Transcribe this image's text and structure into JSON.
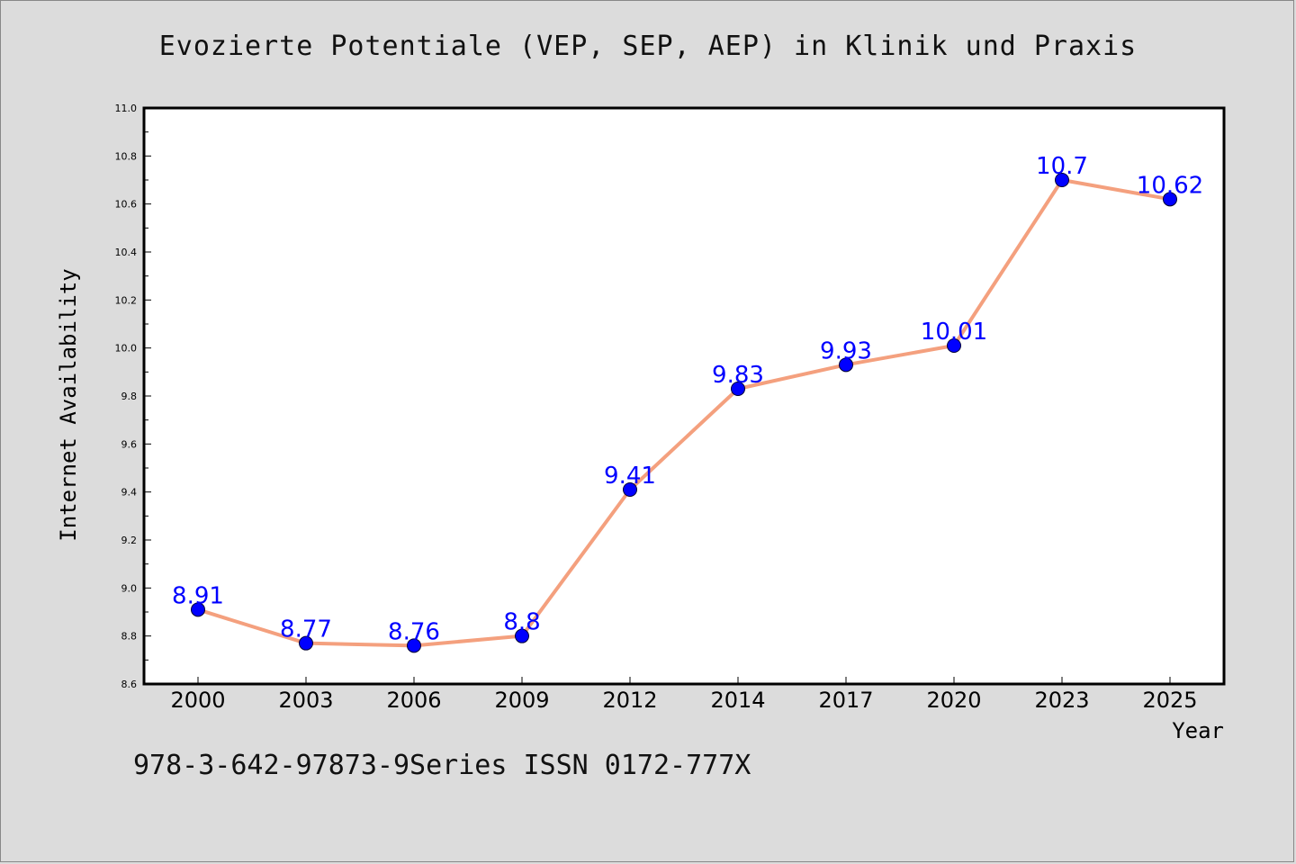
{
  "title": "Evozierte Potentiale (VEP, SEP, AEP) in Klinik und Praxis",
  "footer": "978-3-642-97873-9Series ISSN 0172-777X",
  "colors": {
    "background": "#dcdcdc",
    "plot_background": "#ffffff",
    "line": "#f4a07e",
    "marker": "#0000ff",
    "data_label": "#0000ff"
  },
  "chart_data": {
    "type": "line",
    "title": "Evozierte Potentiale (VEP, SEP, AEP) in Klinik und Praxis",
    "xlabel": "Year",
    "ylabel": "Internet Availability",
    "categories": [
      "2000",
      "2003",
      "2006",
      "2009",
      "2012",
      "2014",
      "2017",
      "2020",
      "2023",
      "2025"
    ],
    "series": [
      {
        "values": [
          8.91,
          8.77,
          8.76,
          8.8,
          9.41,
          9.83,
          9.93,
          10.01,
          10.7,
          10.62
        ],
        "labels": [
          "8.91",
          "8.77",
          "8.76",
          "8.8",
          "9.41",
          "9.83",
          "9.93",
          "10.01",
          "10.7",
          "10.62"
        ]
      }
    ],
    "ylim": [
      8.6,
      11.0
    ],
    "yticks": [
      "8.6",
      "8.8",
      "9.0",
      "9.2",
      "9.4",
      "9.6",
      "9.8",
      "10.0",
      "10.2",
      "10.4",
      "10.6",
      "10.8",
      "11.0"
    ],
    "grid": false,
    "legend": false
  }
}
